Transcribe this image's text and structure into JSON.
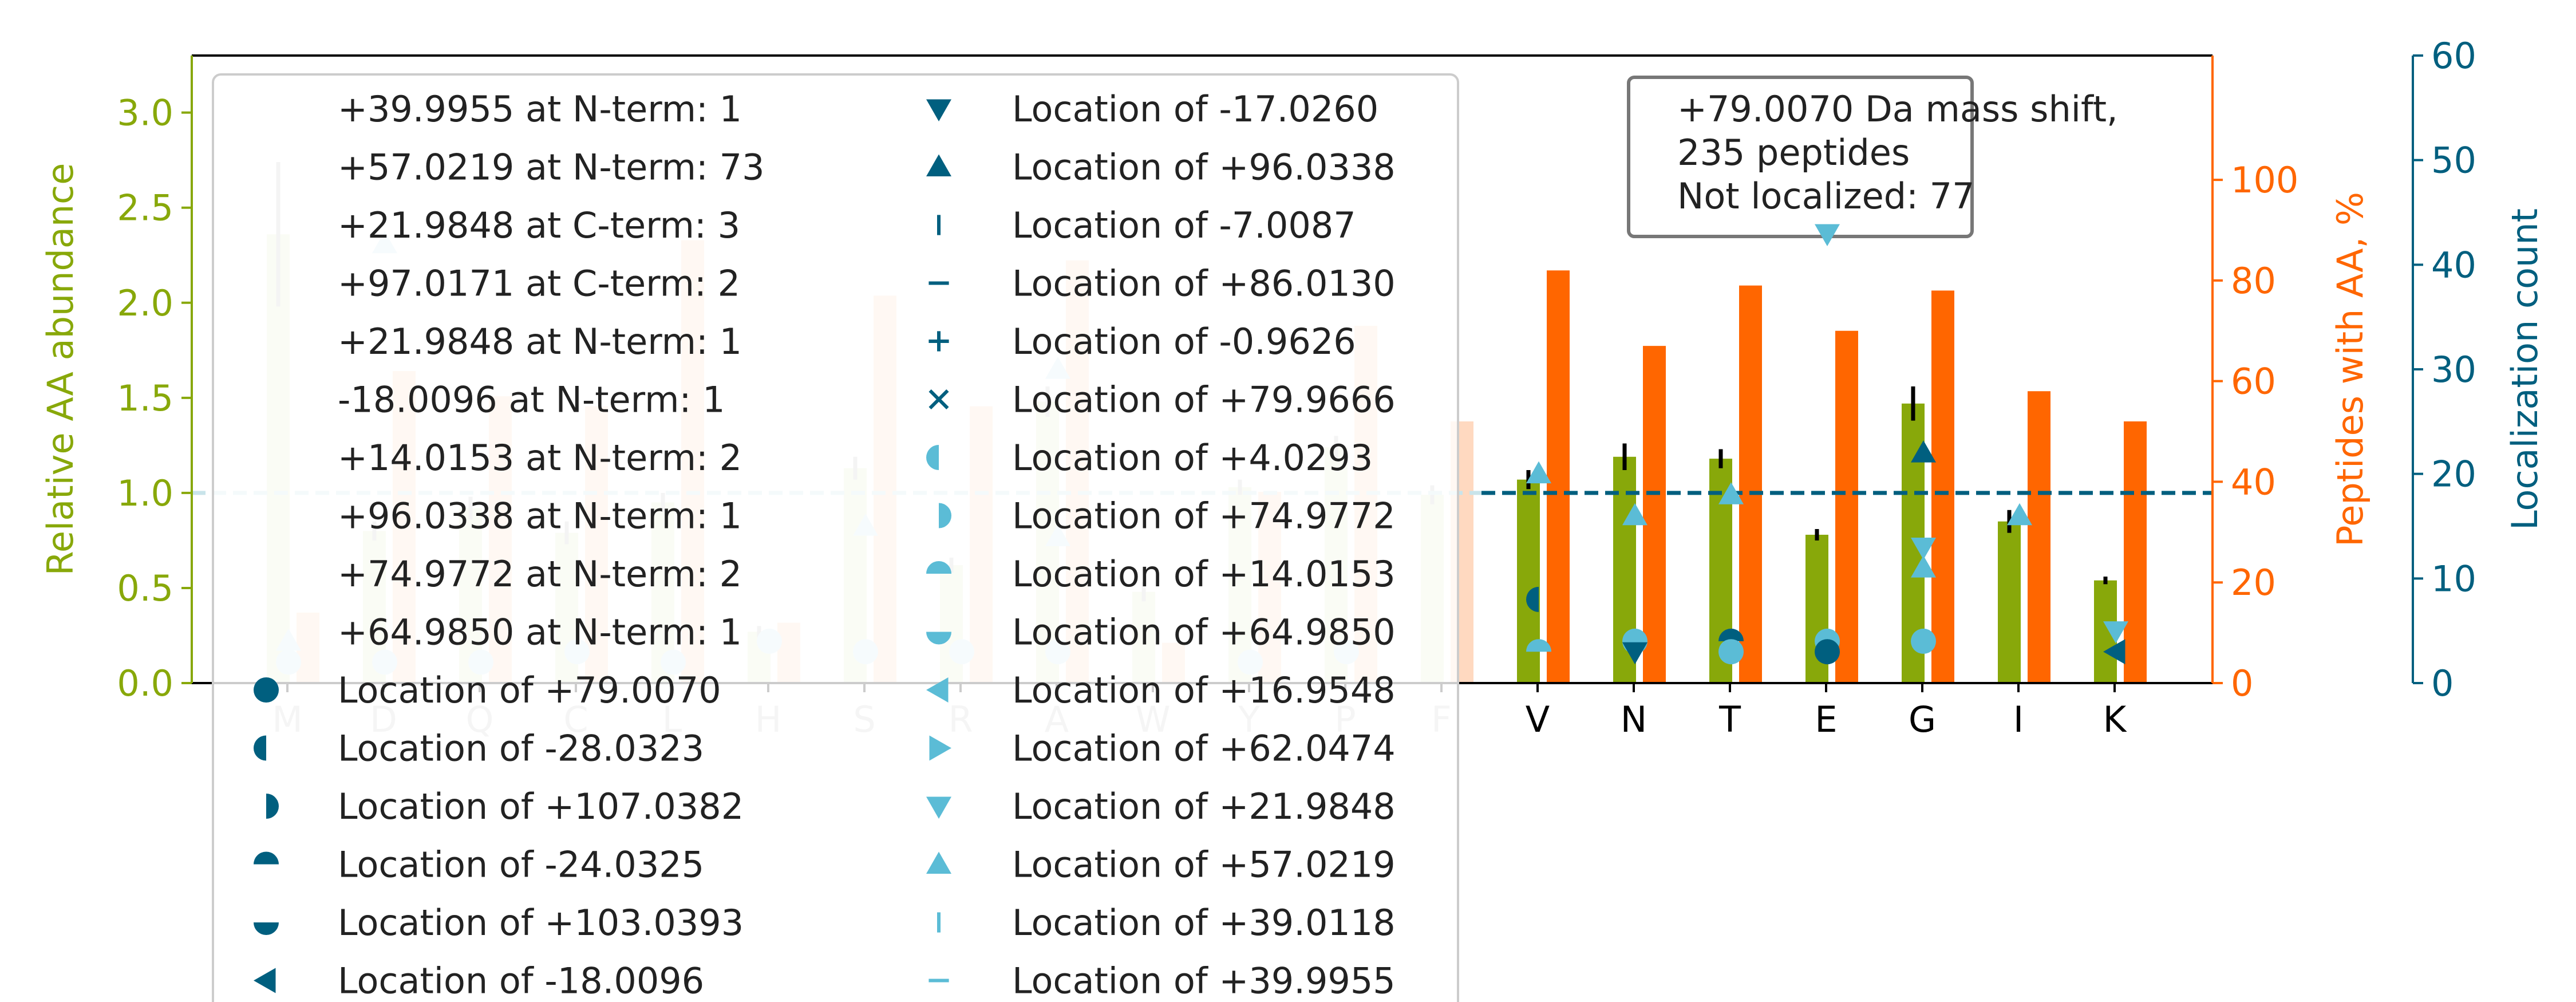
{
  "chart_data": {
    "type": "bar",
    "categories": [
      "M",
      "D",
      "Q",
      "C",
      "L",
      "H",
      "S",
      "R",
      "A",
      "W",
      "Y",
      "P",
      "F",
      "V",
      "N",
      "T",
      "E",
      "G",
      "I",
      "K"
    ],
    "ylabel": "Relative AA abundance",
    "y2label": "Peptides with AA, %",
    "y3label": "Localization count",
    "ylim": [
      0,
      3.3
    ],
    "y2lim": [
      0,
      124.7
    ],
    "y3lim": [
      0,
      60
    ],
    "yticks": [
      "0.0",
      "0.5",
      "1.0",
      "1.5",
      "2.0",
      "2.5",
      "3.0"
    ],
    "y2ticks": [
      "0",
      "20",
      "40",
      "60",
      "80",
      "100"
    ],
    "y3ticks": [
      "0",
      "10",
      "20",
      "30",
      "40",
      "50",
      "60"
    ],
    "reference_line": 1.0,
    "colors": {
      "abundance": "#88a80a",
      "abundance_faded": "#e6edcc",
      "peptides": "#ff6600",
      "peptides_faded": "#ffd9c0",
      "loc_dark": "#005f7f",
      "loc_light": "#5bbcd6",
      "left_axis": "#88a80a",
      "right_axis": "#ff6600",
      "far_axis": "#005f7f",
      "refline": "#005f7f"
    },
    "series": [
      {
        "name": "Relative AA abundance",
        "values": [
          2.36,
          0.8,
          0.92,
          0.79,
          0.95,
          0.27,
          1.13,
          0.62,
          1.48,
          0.48,
          1.03,
          1.24,
          0.99,
          1.07,
          1.19,
          1.18,
          0.78,
          1.47,
          0.85,
          0.54
        ],
        "errors": [
          0.38,
          0.05,
          0.06,
          0.06,
          0.05,
          0.03,
          0.06,
          0.04,
          0.08,
          0.05,
          0.04,
          0.06,
          0.05,
          0.05,
          0.07,
          0.05,
          0.03,
          0.09,
          0.06,
          0.02
        ]
      },
      {
        "name": "Peptides with AA, %",
        "values": [
          14,
          62,
          57,
          55,
          88,
          12,
          77,
          55,
          84,
          8,
          38,
          71,
          52,
          82,
          67,
          79,
          70,
          78,
          58,
          52
        ]
      }
    ],
    "faded_count": 13,
    "localizations": [
      {
        "cat": "V",
        "marker": "triangle-up",
        "color": "light",
        "count": 20
      },
      {
        "cat": "V",
        "marker": "half-left",
        "color": "dark",
        "count": 8
      },
      {
        "cat": "V",
        "marker": "half-top",
        "color": "light",
        "count": 3
      },
      {
        "cat": "N",
        "marker": "triangle-up",
        "color": "light",
        "count": 16
      },
      {
        "cat": "N",
        "marker": "circle",
        "color": "light",
        "count": 4
      },
      {
        "cat": "N",
        "marker": "triangle-down",
        "color": "dark",
        "count": 3
      },
      {
        "cat": "T",
        "marker": "triangle-up",
        "color": "light",
        "count": 18
      },
      {
        "cat": "T",
        "marker": "half-top",
        "color": "dark",
        "count": 4
      },
      {
        "cat": "T",
        "marker": "circle",
        "color": "light",
        "count": 3
      },
      {
        "cat": "E",
        "marker": "circle",
        "color": "light",
        "count": 4
      },
      {
        "cat": "E",
        "marker": "circle",
        "color": "dark",
        "count": 3
      },
      {
        "cat": "G",
        "marker": "triangle-up",
        "color": "dark",
        "count": 22
      },
      {
        "cat": "G",
        "marker": "triangle-up",
        "color": "light",
        "count": 11
      },
      {
        "cat": "G",
        "marker": "triangle-down",
        "color": "light",
        "count": 13
      },
      {
        "cat": "G",
        "marker": "circle",
        "color": "light",
        "count": 4
      },
      {
        "cat": "I",
        "marker": "triangle-up",
        "color": "light",
        "count": 16
      },
      {
        "cat": "K",
        "marker": "triangle-down",
        "color": "light",
        "count": 5
      },
      {
        "cat": "K",
        "marker": "triangle-left",
        "color": "dark",
        "count": 3
      }
    ],
    "faded_markers": [
      {
        "cat": "M",
        "marker": "triangle-up",
        "count": 4
      },
      {
        "cat": "M",
        "marker": "circle",
        "count": 2
      },
      {
        "cat": "D",
        "marker": "triangle-up",
        "count": 42
      },
      {
        "cat": "D",
        "marker": "circle",
        "count": 2
      },
      {
        "cat": "Q",
        "marker": "circle",
        "count": 2
      },
      {
        "cat": "C",
        "marker": "circle",
        "count": 3
      },
      {
        "cat": "L",
        "marker": "circle",
        "count": 2
      },
      {
        "cat": "H",
        "marker": "circle",
        "count": 4
      },
      {
        "cat": "S",
        "marker": "triangle-up",
        "count": 15
      },
      {
        "cat": "S",
        "marker": "circle",
        "count": 3
      },
      {
        "cat": "R",
        "marker": "circle",
        "count": 3
      },
      {
        "cat": "A",
        "marker": "triangle-up",
        "count": 14
      },
      {
        "cat": "A",
        "marker": "triangle-up",
        "count": 30
      },
      {
        "cat": "A",
        "marker": "circle",
        "count": 3
      },
      {
        "cat": "Y",
        "marker": "circle",
        "count": 2
      },
      {
        "cat": "P",
        "marker": "circle",
        "count": 3
      }
    ],
    "annotation": {
      "lines": [
        "+79.0070 Da mass shift,",
        "235 peptides",
        "Not localized: 77"
      ],
      "category": "E"
    },
    "legend": {
      "placement": "top-left",
      "col1": [
        {
          "label": "+39.9955 at N-term: 1",
          "marker": "none",
          "color": "dark"
        },
        {
          "label": "+57.0219 at N-term: 73",
          "marker": "none",
          "color": "dark"
        },
        {
          "label": "+21.9848 at C-term: 3",
          "marker": "none",
          "color": "dark"
        },
        {
          "label": "+97.0171 at C-term: 2",
          "marker": "none",
          "color": "dark"
        },
        {
          "label": "+21.9848 at N-term: 1",
          "marker": "none",
          "color": "dark"
        },
        {
          "label": "-18.0096 at N-term: 1",
          "marker": "none",
          "color": "dark"
        },
        {
          "label": "+14.0153 at N-term: 2",
          "marker": "none",
          "color": "dark"
        },
        {
          "label": "+96.0338 at N-term: 1",
          "marker": "none",
          "color": "dark"
        },
        {
          "label": "+74.9772 at N-term: 2",
          "marker": "none",
          "color": "dark"
        },
        {
          "label": "+64.9850 at N-term: 1",
          "marker": "none",
          "color": "dark"
        },
        {
          "label": "Location of +79.0070",
          "marker": "circle",
          "color": "dark"
        },
        {
          "label": "Location of -28.0323",
          "marker": "half-left",
          "color": "dark"
        },
        {
          "label": "Location of +107.0382",
          "marker": "half-right",
          "color": "dark"
        },
        {
          "label": "Location of -24.0325",
          "marker": "half-top",
          "color": "dark"
        },
        {
          "label": "Location of +103.0393",
          "marker": "half-bottom",
          "color": "dark"
        },
        {
          "label": "Location of -18.0096",
          "marker": "triangle-left",
          "color": "dark"
        }
      ],
      "col2": [
        {
          "label": "Location of -17.0260",
          "marker": "triangle-down",
          "color": "dark"
        },
        {
          "label": "Location of +96.0338",
          "marker": "triangle-up",
          "color": "dark"
        },
        {
          "label": "Location of -7.0087",
          "marker": "vline",
          "color": "dark"
        },
        {
          "label": "Location of +86.0130",
          "marker": "hline",
          "color": "dark"
        },
        {
          "label": "Location of -0.9626",
          "marker": "plus",
          "color": "dark"
        },
        {
          "label": "Location of +79.9666",
          "marker": "x",
          "color": "dark"
        },
        {
          "label": "Location of +4.0293",
          "marker": "half-left",
          "color": "light"
        },
        {
          "label": "Location of +74.9772",
          "marker": "half-right",
          "color": "light"
        },
        {
          "label": "Location of +14.0153",
          "marker": "half-top",
          "color": "light"
        },
        {
          "label": "Location of +64.9850",
          "marker": "half-bottom",
          "color": "light"
        },
        {
          "label": "Location of +16.9548",
          "marker": "triangle-left",
          "color": "light"
        },
        {
          "label": "Location of +62.0474",
          "marker": "triangle-right",
          "color": "light"
        },
        {
          "label": "Location of +21.9848",
          "marker": "triangle-down",
          "color": "light"
        },
        {
          "label": "Location of +57.0219",
          "marker": "triangle-up",
          "color": "light"
        },
        {
          "label": "Location of +39.0118",
          "marker": "vline",
          "color": "light"
        },
        {
          "label": "Location of +39.9955",
          "marker": "hline",
          "color": "light"
        }
      ]
    }
  }
}
